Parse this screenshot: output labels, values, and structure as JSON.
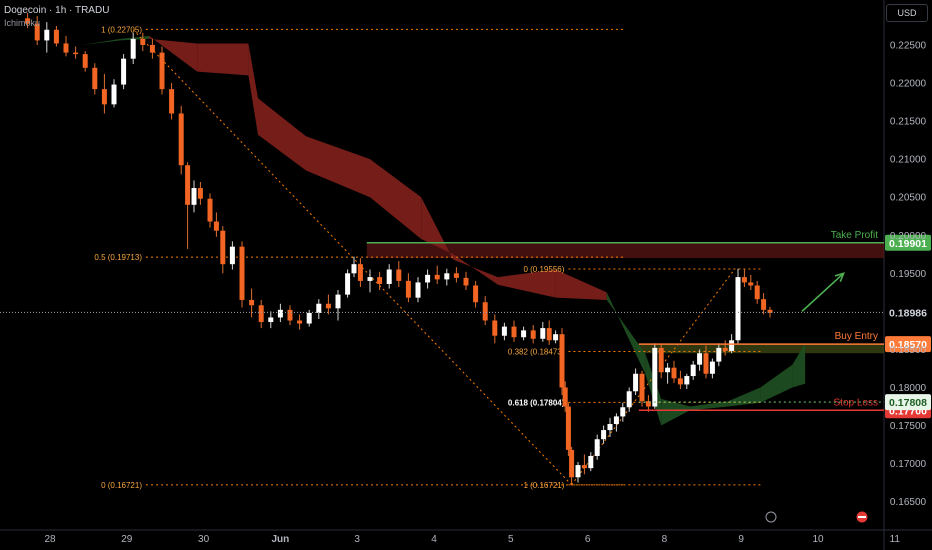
{
  "header": {
    "title": "Dogecoin · 1h · TRADU",
    "indicator": "Ichimoku"
  },
  "currency_button": "USD",
  "chart_data": {
    "type": "candlestick",
    "title": "Dogecoin · 1h · TRADU",
    "xlabel": "",
    "ylabel": "",
    "ylim": [
      0.16285,
      0.23091
    ],
    "y_ticks": [
      "0.22500",
      "0.22000",
      "0.21500",
      "0.21000",
      "0.20500",
      "0.20000",
      "0.19500",
      "0.18500",
      "0.18000",
      "0.17500",
      "0.17000",
      "0.16500"
    ],
    "x_ticks": [
      {
        "label": "28",
        "x": 0
      },
      {
        "label": "29",
        "x": 24
      },
      {
        "label": "30",
        "x": 48
      },
      {
        "label": "Jun",
        "x": 72
      },
      {
        "label": "3",
        "x": 96
      },
      {
        "label": "4",
        "x": 120
      },
      {
        "label": "5",
        "x": 144
      },
      {
        "label": "6",
        "x": 168
      },
      {
        "label": "8",
        "x": 192
      },
      {
        "label": "9",
        "x": 216
      },
      {
        "label": "10",
        "x": 240
      },
      {
        "label": "11",
        "x": 264
      }
    ],
    "x_unit": "hours from 28 00:00",
    "candles": [
      {
        "x": -7,
        "o": 0.2285,
        "h": 0.2292,
        "l": 0.2272,
        "c": 0.2278
      },
      {
        "x": -4,
        "o": 0.2278,
        "h": 0.2288,
        "l": 0.225,
        "c": 0.2256
      },
      {
        "x": -1,
        "o": 0.2256,
        "h": 0.228,
        "l": 0.224,
        "c": 0.227
      },
      {
        "x": 2,
        "o": 0.227,
        "h": 0.2275,
        "l": 0.2248,
        "c": 0.2252
      },
      {
        "x": 5,
        "o": 0.2252,
        "h": 0.2262,
        "l": 0.2235,
        "c": 0.224
      },
      {
        "x": 8,
        "o": 0.224,
        "h": 0.2248,
        "l": 0.2232,
        "c": 0.2238
      },
      {
        "x": 11,
        "o": 0.2238,
        "h": 0.2242,
        "l": 0.2215,
        "c": 0.222
      },
      {
        "x": 14,
        "o": 0.222,
        "h": 0.2226,
        "l": 0.2185,
        "c": 0.2192
      },
      {
        "x": 17,
        "o": 0.2192,
        "h": 0.2212,
        "l": 0.216,
        "c": 0.2172
      },
      {
        "x": 20,
        "o": 0.2172,
        "h": 0.2205,
        "l": 0.2168,
        "c": 0.2198
      },
      {
        "x": 23,
        "o": 0.2198,
        "h": 0.2238,
        "l": 0.2192,
        "c": 0.2232
      },
      {
        "x": 26,
        "o": 0.2232,
        "h": 0.2266,
        "l": 0.2225,
        "c": 0.2258
      },
      {
        "x": 29,
        "o": 0.2258,
        "h": 0.2266,
        "l": 0.2242,
        "c": 0.225
      },
      {
        "x": 32,
        "o": 0.225,
        "h": 0.2258,
        "l": 0.2232,
        "c": 0.224
      },
      {
        "x": 35,
        "o": 0.224,
        "h": 0.2248,
        "l": 0.2185,
        "c": 0.2192
      },
      {
        "x": 38,
        "o": 0.2192,
        "h": 0.22,
        "l": 0.2152,
        "c": 0.216
      },
      {
        "x": 41,
        "o": 0.216,
        "h": 0.217,
        "l": 0.208,
        "c": 0.2092
      },
      {
        "x": 43,
        "o": 0.2092,
        "h": 0.2096,
        "l": 0.1982,
        "c": 0.204
      },
      {
        "x": 45,
        "o": 0.204,
        "h": 0.2072,
        "l": 0.203,
        "c": 0.2062
      },
      {
        "x": 47,
        "o": 0.2062,
        "h": 0.207,
        "l": 0.204,
        "c": 0.2048
      },
      {
        "x": 50,
        "o": 0.2048,
        "h": 0.2055,
        "l": 0.201,
        "c": 0.2018
      },
      {
        "x": 52,
        "o": 0.2018,
        "h": 0.203,
        "l": 0.1998,
        "c": 0.2006
      },
      {
        "x": 54,
        "o": 0.2006,
        "h": 0.2012,
        "l": 0.195,
        "c": 0.1962
      },
      {
        "x": 57,
        "o": 0.1962,
        "h": 0.1992,
        "l": 0.1955,
        "c": 0.1985
      },
      {
        "x": 60,
        "o": 0.1985,
        "h": 0.1992,
        "l": 0.1905,
        "c": 0.1915
      },
      {
        "x": 63,
        "o": 0.1915,
        "h": 0.193,
        "l": 0.1892,
        "c": 0.1908
      },
      {
        "x": 66,
        "o": 0.1908,
        "h": 0.1915,
        "l": 0.1878,
        "c": 0.1886
      },
      {
        "x": 69,
        "o": 0.1886,
        "h": 0.19,
        "l": 0.1878,
        "c": 0.1892
      },
      {
        "x": 72,
        "o": 0.1892,
        "h": 0.191,
        "l": 0.1886,
        "c": 0.1902
      },
      {
        "x": 75,
        "o": 0.1902,
        "h": 0.1908,
        "l": 0.1882,
        "c": 0.1888
      },
      {
        "x": 78,
        "o": 0.1888,
        "h": 0.1896,
        "l": 0.1876,
        "c": 0.1884
      },
      {
        "x": 81,
        "o": 0.1884,
        "h": 0.1902,
        "l": 0.188,
        "c": 0.1898
      },
      {
        "x": 84,
        "o": 0.1898,
        "h": 0.1916,
        "l": 0.189,
        "c": 0.191
      },
      {
        "x": 87,
        "o": 0.191,
        "h": 0.1922,
        "l": 0.1896,
        "c": 0.1904
      },
      {
        "x": 90,
        "o": 0.1904,
        "h": 0.1928,
        "l": 0.1888,
        "c": 0.1922
      },
      {
        "x": 93,
        "o": 0.1922,
        "h": 0.1955,
        "l": 0.1918,
        "c": 0.195
      },
      {
        "x": 95,
        "o": 0.195,
        "h": 0.1972,
        "l": 0.1945,
        "c": 0.1962
      },
      {
        "x": 97,
        "o": 0.1962,
        "h": 0.197,
        "l": 0.1932,
        "c": 0.194
      },
      {
        "x": 100,
        "o": 0.194,
        "h": 0.1955,
        "l": 0.1925,
        "c": 0.1945
      },
      {
        "x": 103,
        "o": 0.1945,
        "h": 0.1952,
        "l": 0.1928,
        "c": 0.1936
      },
      {
        "x": 106,
        "o": 0.1936,
        "h": 0.1962,
        "l": 0.193,
        "c": 0.1955
      },
      {
        "x": 109,
        "o": 0.1955,
        "h": 0.1966,
        "l": 0.1932,
        "c": 0.194
      },
      {
        "x": 112,
        "o": 0.194,
        "h": 0.195,
        "l": 0.1912,
        "c": 0.1918
      },
      {
        "x": 115,
        "o": 0.1918,
        "h": 0.1945,
        "l": 0.1912,
        "c": 0.1938
      },
      {
        "x": 118,
        "o": 0.1938,
        "h": 0.1955,
        "l": 0.193,
        "c": 0.1948
      },
      {
        "x": 121,
        "o": 0.1948,
        "h": 0.196,
        "l": 0.1936,
        "c": 0.1942
      },
      {
        "x": 124,
        "o": 0.1942,
        "h": 0.1956,
        "l": 0.1934,
        "c": 0.195
      },
      {
        "x": 127,
        "o": 0.195,
        "h": 0.1958,
        "l": 0.1938,
        "c": 0.1944
      },
      {
        "x": 130,
        "o": 0.1944,
        "h": 0.1952,
        "l": 0.1928,
        "c": 0.1934
      },
      {
        "x": 133,
        "o": 0.1934,
        "h": 0.194,
        "l": 0.1905,
        "c": 0.1912
      },
      {
        "x": 136,
        "o": 0.1912,
        "h": 0.192,
        "l": 0.1882,
        "c": 0.1888
      },
      {
        "x": 139,
        "o": 0.1888,
        "h": 0.1896,
        "l": 0.1858,
        "c": 0.1868
      },
      {
        "x": 142,
        "o": 0.1868,
        "h": 0.1885,
        "l": 0.1862,
        "c": 0.188
      },
      {
        "x": 145,
        "o": 0.188,
        "h": 0.1888,
        "l": 0.186,
        "c": 0.1866
      },
      {
        "x": 148,
        "o": 0.1866,
        "h": 0.188,
        "l": 0.1862,
        "c": 0.1875
      },
      {
        "x": 151,
        "o": 0.1875,
        "h": 0.1882,
        "l": 0.1858,
        "c": 0.1864
      },
      {
        "x": 154,
        "o": 0.1864,
        "h": 0.1886,
        "l": 0.186,
        "c": 0.1878
      },
      {
        "x": 156,
        "o": 0.1878,
        "h": 0.1888,
        "l": 0.1856,
        "c": 0.1862
      },
      {
        "x": 158,
        "o": 0.1862,
        "h": 0.1875,
        "l": 0.1858,
        "c": 0.187
      },
      {
        "x": 160,
        "o": 0.187,
        "h": 0.1878,
        "l": 0.179,
        "c": 0.18
      },
      {
        "x": 161,
        "o": 0.18,
        "h": 0.1808,
        "l": 0.1768,
        "c": 0.1775
      },
      {
        "x": 162,
        "o": 0.1775,
        "h": 0.178,
        "l": 0.171,
        "c": 0.1718
      },
      {
        "x": 163,
        "o": 0.1718,
        "h": 0.1722,
        "l": 0.1672,
        "c": 0.1682
      },
      {
        "x": 165,
        "o": 0.1682,
        "h": 0.1702,
        "l": 0.1675,
        "c": 0.1698
      },
      {
        "x": 167,
        "o": 0.1698,
        "h": 0.1712,
        "l": 0.1686,
        "c": 0.1694
      },
      {
        "x": 169,
        "o": 0.1694,
        "h": 0.1715,
        "l": 0.169,
        "c": 0.171
      },
      {
        "x": 171,
        "o": 0.171,
        "h": 0.1738,
        "l": 0.1705,
        "c": 0.1732
      },
      {
        "x": 173,
        "o": 0.1732,
        "h": 0.175,
        "l": 0.1726,
        "c": 0.1744
      },
      {
        "x": 175,
        "o": 0.1744,
        "h": 0.176,
        "l": 0.1735,
        "c": 0.1752
      },
      {
        "x": 177,
        "o": 0.1752,
        "h": 0.1766,
        "l": 0.1742,
        "c": 0.1762
      },
      {
        "x": 179,
        "o": 0.1762,
        "h": 0.178,
        "l": 0.1755,
        "c": 0.1774
      },
      {
        "x": 181,
        "o": 0.1774,
        "h": 0.18,
        "l": 0.1768,
        "c": 0.1795
      },
      {
        "x": 183,
        "o": 0.1795,
        "h": 0.1825,
        "l": 0.179,
        "c": 0.1818
      },
      {
        "x": 185,
        "o": 0.1818,
        "h": 0.1822,
        "l": 0.1775,
        "c": 0.1782
      },
      {
        "x": 187,
        "o": 0.1782,
        "h": 0.179,
        "l": 0.1768,
        "c": 0.1775
      },
      {
        "x": 189,
        "o": 0.1775,
        "h": 0.1858,
        "l": 0.1772,
        "c": 0.1852
      },
      {
        "x": 191,
        "o": 0.1852,
        "h": 0.1858,
        "l": 0.1812,
        "c": 0.182
      },
      {
        "x": 193,
        "o": 0.182,
        "h": 0.1832,
        "l": 0.1805,
        "c": 0.1826
      },
      {
        "x": 195,
        "o": 0.1826,
        "h": 0.1835,
        "l": 0.1806,
        "c": 0.1812
      },
      {
        "x": 197,
        "o": 0.1812,
        "h": 0.1822,
        "l": 0.1798,
        "c": 0.1804
      },
      {
        "x": 199,
        "o": 0.1804,
        "h": 0.1818,
        "l": 0.1798,
        "c": 0.1815
      },
      {
        "x": 201,
        "o": 0.1815,
        "h": 0.1835,
        "l": 0.181,
        "c": 0.183
      },
      {
        "x": 203,
        "o": 0.183,
        "h": 0.185,
        "l": 0.1822,
        "c": 0.1845
      },
      {
        "x": 205,
        "o": 0.1845,
        "h": 0.1855,
        "l": 0.1812,
        "c": 0.1818
      },
      {
        "x": 207,
        "o": 0.1818,
        "h": 0.1838,
        "l": 0.1812,
        "c": 0.1834
      },
      {
        "x": 209,
        "o": 0.1834,
        "h": 0.1858,
        "l": 0.1828,
        "c": 0.1852
      },
      {
        "x": 211,
        "o": 0.1852,
        "h": 0.1862,
        "l": 0.1842,
        "c": 0.1848
      },
      {
        "x": 213,
        "o": 0.1848,
        "h": 0.187,
        "l": 0.1845,
        "c": 0.1862
      },
      {
        "x": 215,
        "o": 0.1862,
        "h": 0.1956,
        "l": 0.1858,
        "c": 0.1945
      },
      {
        "x": 217,
        "o": 0.1945,
        "h": 0.1956,
        "l": 0.1932,
        "c": 0.1938
      },
      {
        "x": 219,
        "o": 0.1938,
        "h": 0.1948,
        "l": 0.1928,
        "c": 0.1934
      },
      {
        "x": 221,
        "o": 0.1934,
        "h": 0.194,
        "l": 0.191,
        "c": 0.1916
      },
      {
        "x": 223,
        "o": 0.1916,
        "h": 0.1924,
        "l": 0.1896,
        "c": 0.1902
      },
      {
        "x": 225,
        "o": 0.1902,
        "h": 0.1906,
        "l": 0.1892,
        "c": 0.1898
      }
    ],
    "ichimoku_cloud": {
      "bearish_color": "#7b1f1a",
      "bullish_color": "#1e4d21",
      "span_a": [
        {
          "x": -5,
          "y": 0.2276
        },
        {
          "x": 10,
          "y": 0.225
        },
        {
          "x": 22,
          "y": 0.2258
        },
        {
          "x": 31,
          "y": 0.2262
        },
        {
          "x": 46,
          "y": 0.2215
        },
        {
          "x": 62,
          "y": 0.221
        },
        {
          "x": 65,
          "y": 0.2132
        },
        {
          "x": 80,
          "y": 0.2085
        },
        {
          "x": 100,
          "y": 0.205
        },
        {
          "x": 116,
          "y": 0.1995
        },
        {
          "x": 126,
          "y": 0.1975
        },
        {
          "x": 140,
          "y": 0.1935
        },
        {
          "x": 158,
          "y": 0.1918
        },
        {
          "x": 174,
          "y": 0.1915
        },
        {
          "x": 186,
          "y": 0.1845
        },
        {
          "x": 191,
          "y": 0.1785
        },
        {
          "x": 200,
          "y": 0.1775
        },
        {
          "x": 212,
          "y": 0.1782
        },
        {
          "x": 222,
          "y": 0.18
        },
        {
          "x": 232,
          "y": 0.183
        },
        {
          "x": 236,
          "y": 0.1858
        }
      ],
      "span_b": [
        {
          "x": -5,
          "y": 0.2276
        },
        {
          "x": 10,
          "y": 0.225
        },
        {
          "x": 22,
          "y": 0.2256
        },
        {
          "x": 31,
          "y": 0.2258
        },
        {
          "x": 46,
          "y": 0.2252
        },
        {
          "x": 62,
          "y": 0.2252
        },
        {
          "x": 65,
          "y": 0.218
        },
        {
          "x": 80,
          "y": 0.213
        },
        {
          "x": 100,
          "y": 0.21
        },
        {
          "x": 116,
          "y": 0.205
        },
        {
          "x": 126,
          "y": 0.1968
        },
        {
          "x": 140,
          "y": 0.1945
        },
        {
          "x": 158,
          "y": 0.1955
        },
        {
          "x": 174,
          "y": 0.1925
        },
        {
          "x": 186,
          "y": 0.1818
        },
        {
          "x": 191,
          "y": 0.175
        },
        {
          "x": 200,
          "y": 0.177
        },
        {
          "x": 212,
          "y": 0.1775
        },
        {
          "x": 222,
          "y": 0.178
        },
        {
          "x": 232,
          "y": 0.18
        },
        {
          "x": 236,
          "y": 0.1805
        }
      ]
    },
    "fib_retracements": [
      {
        "levels": [
          {
            "label": "1 (0.22705)",
            "y": 0.22705
          },
          {
            "label": "0.5 (0.19713)",
            "y": 0.19713
          },
          {
            "label": "0 (0.16721)",
            "y": 0.16721
          }
        ],
        "x_from": 30,
        "x_to": 180
      },
      {
        "levels": [
          {
            "label": "0 (0.19556)",
            "y": 0.19556
          },
          {
            "label": "0.382 (0.18473)",
            "y": 0.18473
          },
          {
            "label": "0.618 (0.17804)",
            "y": 0.17804,
            "bold": true
          },
          {
            "label": "1 (0.16721)",
            "y": 0.16721
          }
        ],
        "x_from": 162,
        "x_to": 222
      }
    ],
    "trend_lines": [
      {
        "from": {
          "x": 26,
          "y": 0.227
        },
        "to": {
          "x": 163,
          "y": 0.16721
        }
      },
      {
        "from": {
          "x": 163,
          "y": 0.16721
        },
        "to": {
          "x": 214,
          "y": 0.19556
        }
      }
    ],
    "boxes": [
      {
        "x_from": 99,
        "x_to": 280,
        "y_top": 0.19901,
        "y_bottom": 0.197,
        "color": "#5a1414"
      },
      {
        "x_from": 184,
        "x_to": 280,
        "y_top": 0.1857,
        "y_bottom": 0.1845,
        "color": "#3d4a12"
      }
    ],
    "levels": [
      {
        "name": "Take Profit",
        "value": 0.19901,
        "label": "0.19901",
        "color": "#4caf50",
        "style": "solid"
      },
      {
        "name": "Buy Entry",
        "value": 0.1857,
        "label": "0.18570",
        "color": "#ff7b39",
        "style": "solid"
      },
      {
        "name": "Stop Loss",
        "value": 0.177,
        "label": "0.17700",
        "color": "#e53935",
        "style": "solid"
      },
      {
        "name": "",
        "value": 0.17808,
        "label": "0.17808",
        "color": "#66bb6a",
        "style": "dotted"
      },
      {
        "name": "",
        "value": 0.18986,
        "label": "0.18986",
        "color": "#9598a1",
        "style": "dotted"
      }
    ],
    "arrow": {
      "from": {
        "x": 235,
        "y": 0.19
      },
      "to": {
        "x": 248,
        "y": 0.195
      },
      "color": "#4caf50"
    },
    "grid": false,
    "legend": "none"
  }
}
